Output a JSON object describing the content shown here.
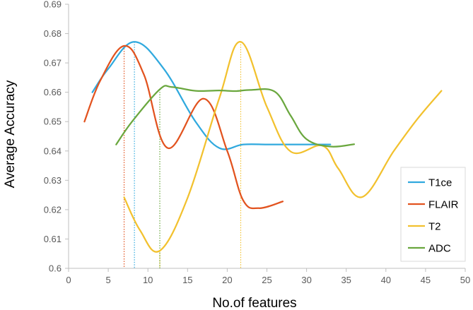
{
  "chart_data": {
    "type": "line",
    "title": "",
    "xlabel": "No.of features",
    "ylabel": "Average Accuracy",
    "xlim": [
      0,
      50
    ],
    "ylim": [
      0.6,
      0.69
    ],
    "xticks": [
      0,
      5,
      10,
      15,
      20,
      25,
      30,
      35,
      40,
      45,
      50
    ],
    "yticks": [
      0.6,
      0.61,
      0.62,
      0.63,
      0.64,
      0.65,
      0.66,
      0.67,
      0.68,
      0.69
    ],
    "ytick_labels": [
      "0.6",
      "0.61",
      "0.62",
      "0.63",
      "0.64",
      "0.65",
      "0.66",
      "0.67",
      "0.68",
      "0.69"
    ],
    "grid": false,
    "legend": "right",
    "series": [
      {
        "name": "T1ce",
        "color": "#30A9DE",
        "x": [
          3,
          5,
          8.3,
          12,
          16,
          19,
          22,
          25,
          28,
          31,
          33
        ],
        "y": [
          0.66,
          0.668,
          0.6772,
          0.668,
          0.65,
          0.641,
          0.6422,
          0.6422,
          0.6422,
          0.6422,
          0.6422
        ]
      },
      {
        "name": "FLAIR",
        "color": "#E2531F",
        "x": [
          2,
          4,
          7,
          9.5,
          12.5,
          17,
          20,
          22,
          24,
          27
        ],
        "y": [
          0.65,
          0.664,
          0.6758,
          0.666,
          0.641,
          0.6578,
          0.64,
          0.6232,
          0.6205,
          0.6228
        ]
      },
      {
        "name": "T2",
        "color": "#F2C12E",
        "x": [
          7,
          9,
          11.5,
          15,
          19,
          21.7,
          25,
          28,
          32,
          34,
          37,
          41,
          44,
          47
        ],
        "y": [
          0.6242,
          0.613,
          0.606,
          0.624,
          0.658,
          0.6772,
          0.655,
          0.6398,
          0.6418,
          0.634,
          0.6243,
          0.64,
          0.651,
          0.6605
        ]
      },
      {
        "name": "ADC",
        "color": "#6AA73E",
        "x": [
          6,
          8,
          11.5,
          13,
          16,
          19,
          21,
          23,
          26,
          28,
          30,
          33,
          36
        ],
        "y": [
          0.6422,
          0.65,
          0.661,
          0.6618,
          0.6605,
          0.6606,
          0.6604,
          0.6608,
          0.6602,
          0.652,
          0.644,
          0.6415,
          0.6423
        ]
      }
    ],
    "reference_lines": [
      {
        "series": "T1ce",
        "x": 8.3,
        "y": 0.6772
      },
      {
        "series": "FLAIR",
        "x": 7,
        "y": 0.6758
      },
      {
        "series": "T2",
        "x": 11.5,
        "y": 0.606
      },
      {
        "series": "T2",
        "x": 21.7,
        "y": 0.6772
      },
      {
        "series": "ADC",
        "x": 11.5,
        "y": 0.661
      }
    ]
  }
}
